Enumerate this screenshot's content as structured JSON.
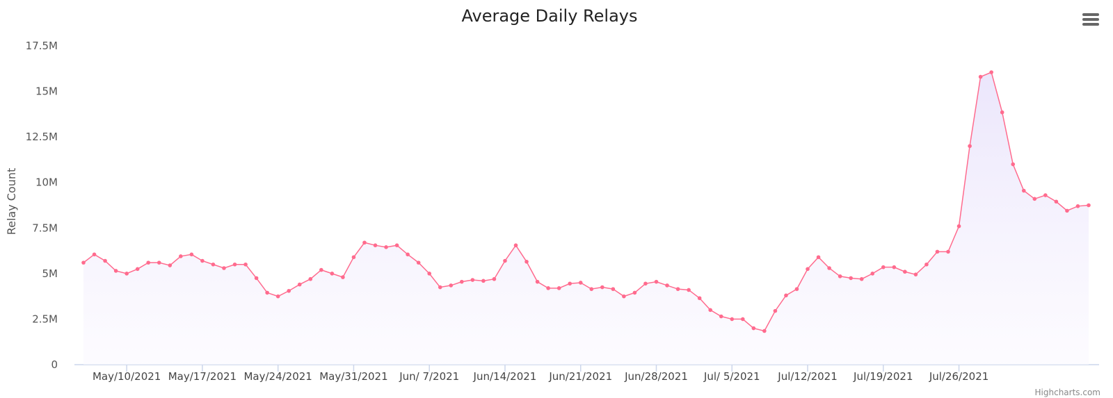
{
  "chart_data": {
    "type": "area",
    "title": "Average Daily Relays",
    "xlabel": "",
    "ylabel": "Relay Count",
    "ylim": [
      0,
      17500000
    ],
    "yticks": [
      {
        "value": 0,
        "label": "0"
      },
      {
        "value": 2500000,
        "label": "2.5M"
      },
      {
        "value": 5000000,
        "label": "5M"
      },
      {
        "value": 7500000,
        "label": "7.5M"
      },
      {
        "value": 10000000,
        "label": "10M"
      },
      {
        "value": 12500000,
        "label": "12.5M"
      },
      {
        "value": 15000000,
        "label": "15M"
      },
      {
        "value": 17500000,
        "label": "17.5M"
      }
    ],
    "x_start": "2021-05-06",
    "xticks": [
      {
        "date": "2021-05-10",
        "label": "May/10/2021"
      },
      {
        "date": "2021-05-17",
        "label": "May/17/2021"
      },
      {
        "date": "2021-05-24",
        "label": "May/24/2021"
      },
      {
        "date": "2021-05-31",
        "label": "May/31/2021"
      },
      {
        "date": "2021-06-07",
        "label": "Jun/ 7/2021"
      },
      {
        "date": "2021-06-14",
        "label": "Jun/14/2021"
      },
      {
        "date": "2021-06-21",
        "label": "Jun/21/2021"
      },
      {
        "date": "2021-06-28",
        "label": "Jun/28/2021"
      },
      {
        "date": "2021-07-05",
        "label": "Jul/ 5/2021"
      },
      {
        "date": "2021-07-12",
        "label": "Jul/12/2021"
      },
      {
        "date": "2021-07-19",
        "label": "Jul/19/2021"
      },
      {
        "date": "2021-07-26",
        "label": "Jul/26/2021"
      }
    ],
    "grid": false,
    "legend": "none",
    "series": [
      {
        "color": "#ff6b8e",
        "values": [
          5600000,
          6050000,
          5700000,
          5150000,
          5000000,
          5250000,
          5600000,
          5600000,
          5450000,
          5950000,
          6050000,
          5700000,
          5500000,
          5300000,
          5500000,
          5500000,
          4750000,
          3950000,
          3750000,
          4050000,
          4400000,
          4700000,
          5200000,
          5000000,
          4800000,
          5900000,
          6700000,
          6550000,
          6450000,
          6550000,
          6050000,
          5600000,
          5000000,
          4250000,
          4350000,
          4550000,
          4650000,
          4600000,
          4700000,
          5700000,
          6550000,
          5650000,
          4550000,
          4200000,
          4200000,
          4450000,
          4500000,
          4150000,
          4250000,
          4150000,
          3750000,
          3950000,
          4450000,
          4550000,
          4350000,
          4150000,
          4100000,
          3650000,
          3000000,
          2650000,
          2500000,
          2500000,
          2000000,
          1850000,
          2950000,
          3800000,
          4150000,
          5250000,
          5900000,
          5300000,
          4850000,
          4750000,
          4700000,
          5000000,
          5350000,
          5350000,
          5100000,
          4950000,
          5500000,
          6200000,
          6200000,
          7600000,
          12000000,
          15800000,
          16050000,
          13850000,
          11000000,
          9550000,
          9100000,
          9300000,
          8950000,
          8450000,
          8700000,
          8750000
        ]
      }
    ]
  },
  "credits": "Highcharts.com",
  "menu_icon": "hamburger-menu-icon",
  "colors": {
    "line": "#ff6b8e",
    "area_top": "#e9e3fb",
    "area_bottom": "#fbf9ff",
    "axis": "#ccd6eb"
  }
}
